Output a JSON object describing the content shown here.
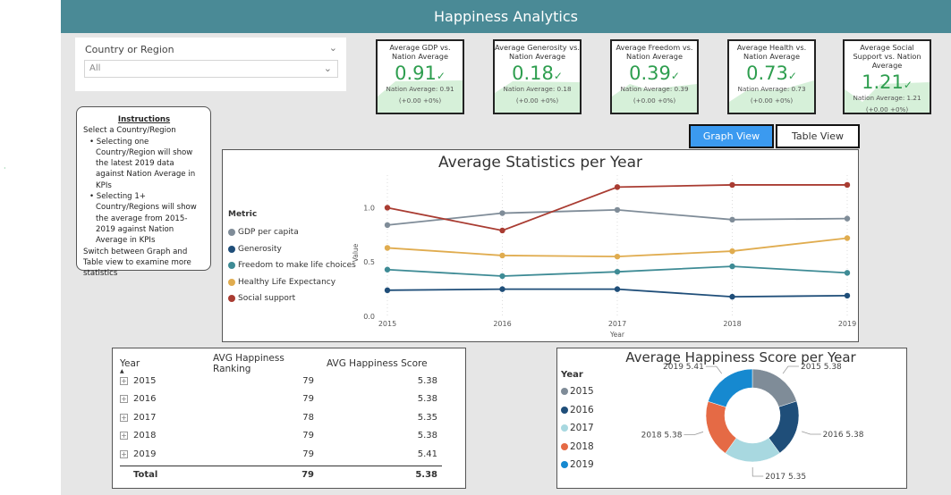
{
  "header": {
    "title": "Happiness Analytics"
  },
  "slicer": {
    "label": "Country or Region",
    "value": "All"
  },
  "instructions": {
    "heading": "Instructions",
    "line1": "Select a Country/Region",
    "bullet1": "• Selecting one Country/Region will show the latest 2019 data against Nation Average in KPIs",
    "bullet2": "• Selecting 1+ Country/Regions will show the average from 2015-2019 against Nation Average in KPIs",
    "line2": "Switch between Graph and Table view to examine more statistics"
  },
  "kpis": [
    {
      "title": "Average GDP vs. Nation Average",
      "value": "0.91",
      "nation": "Nation Average: 0.91",
      "delta": "(+0.00 +0%)"
    },
    {
      "title": "Average Generosity vs. Nation Average",
      "value": "0.18",
      "nation": "Nation Average: 0.18",
      "delta": "(+0.00 +0%)"
    },
    {
      "title": "Average Freedom vs. Nation Average",
      "value": "0.39",
      "nation": "Nation Average: 0.39",
      "delta": "(+0.00 +0%)"
    },
    {
      "title": "Average Health vs. Nation Average",
      "value": "0.73",
      "nation": "Nation Average: 0.73",
      "delta": "(+0.00 +0%)"
    },
    {
      "title": "Average Social Support vs. Nation Average",
      "value": "1.21",
      "nation": "Nation Average: 1.21",
      "delta": "(+0.00 +0%)"
    }
  ],
  "kpi_check": "✓",
  "view_buttons": {
    "graph": "Graph View",
    "table": "Table View"
  },
  "line_legend": {
    "title": "Metric",
    "items": [
      "GDP per capita",
      "Generosity",
      "Freedom to make life choices",
      "Healthy Life Expectancy",
      "Social support"
    ]
  },
  "table": {
    "headers": [
      "Year",
      "AVG Happiness Ranking",
      "AVG Happiness Score"
    ],
    "rows": [
      {
        "year": "2015",
        "rank": "79",
        "score": "5.38"
      },
      {
        "year": "2016",
        "rank": "79",
        "score": "5.38"
      },
      {
        "year": "2017",
        "rank": "78",
        "score": "5.35"
      },
      {
        "year": "2018",
        "rank": "79",
        "score": "5.38"
      },
      {
        "year": "2019",
        "rank": "79",
        "score": "5.41"
      }
    ],
    "total": {
      "label": "Total",
      "rank": "79",
      "score": "5.38"
    }
  },
  "donut_legend": {
    "title": "Year"
  },
  "chart_data": [
    {
      "type": "line",
      "title": "Average Statistics per Year",
      "xlabel": "Year",
      "ylabel": "Value",
      "x": [
        2015,
        2016,
        2017,
        2018,
        2019
      ],
      "yticks": [
        "0.0",
        "0.5",
        "1.0"
      ],
      "ylim": [
        0,
        1.3
      ],
      "grid": true,
      "legend_position": "left",
      "series": [
        {
          "name": "GDP per capita",
          "color": "#7f8c98",
          "values": [
            0.84,
            0.95,
            0.98,
            0.89,
            0.9
          ]
        },
        {
          "name": "Generosity",
          "color": "#1f4e79",
          "values": [
            0.24,
            0.25,
            0.25,
            0.18,
            0.19
          ]
        },
        {
          "name": "Freedom to make life choices",
          "color": "#3e8b95",
          "values": [
            0.43,
            0.37,
            0.41,
            0.46,
            0.4
          ]
        },
        {
          "name": "Healthy Life Expectancy",
          "color": "#e0ac4f",
          "values": [
            0.63,
            0.56,
            0.55,
            0.6,
            0.72
          ]
        },
        {
          "name": "Social support",
          "color": "#a93c32",
          "values": [
            1.0,
            0.79,
            1.19,
            1.21,
            1.21
          ]
        }
      ]
    },
    {
      "type": "pie",
      "title": "Average Happiness Score per Year",
      "legend_position": "left",
      "categories": [
        "2015",
        "2016",
        "2017",
        "2018",
        "2019"
      ],
      "values": [
        5.38,
        5.38,
        5.35,
        5.38,
        5.41
      ],
      "labels": [
        "2015 5.38",
        "2016 5.38",
        "2017 5.35",
        "2018 5.38",
        "2019 5.41"
      ],
      "colors": [
        "#7f8c98",
        "#1f4e79",
        "#a8d8e0",
        "#e56a45",
        "#1689d0"
      ]
    }
  ]
}
